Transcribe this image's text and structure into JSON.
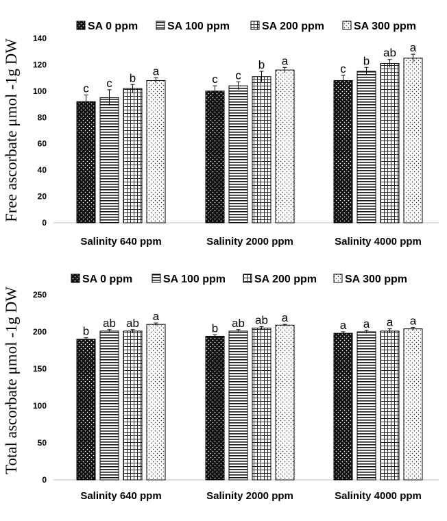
{
  "chart_data": [
    {
      "type": "bar",
      "ylabel": "Free ascorbate μmol -1g DW",
      "ylim": [
        0,
        140
      ],
      "yticks": [
        0,
        20,
        40,
        60,
        80,
        100,
        120,
        140
      ],
      "categories": [
        "Salinity 640 ppm",
        "Salinity 2000 ppm",
        "Salinity 4000 ppm"
      ],
      "legend_position": "top",
      "series": [
        {
          "name": "SA 0 ppm",
          "pattern": "dots-dark",
          "values": [
            92,
            100,
            108
          ],
          "errors": [
            5,
            4,
            4
          ],
          "letters": [
            "c",
            "c",
            "c"
          ]
        },
        {
          "name": "SA 100 ppm",
          "pattern": "horizontal",
          "values": [
            95,
            104,
            115
          ],
          "errors": [
            6,
            3,
            3
          ],
          "letters": [
            "c",
            "c",
            "b"
          ]
        },
        {
          "name": "SA 200 ppm",
          "pattern": "grid",
          "values": [
            102,
            111,
            121
          ],
          "errors": [
            3,
            4,
            3
          ],
          "letters": [
            "b",
            "b",
            "ab"
          ]
        },
        {
          "name": "SA 300 ppm",
          "pattern": "dots-light",
          "values": [
            108,
            116,
            125
          ],
          "errors": [
            2,
            2,
            3
          ],
          "letters": [
            "a",
            "a",
            "a"
          ]
        }
      ]
    },
    {
      "type": "bar",
      "ylabel": "Total ascorbate μmol -1g DW",
      "ylim": [
        0,
        250
      ],
      "yticks": [
        0,
        50,
        100,
        150,
        200,
        250
      ],
      "categories": [
        "Salinity 640 ppm",
        "Salinity 2000 ppm",
        "Salinity 4000 ppm"
      ],
      "legend_position": "top",
      "series": [
        {
          "name": "SA 0 ppm",
          "pattern": "dots-dark",
          "values": [
            190,
            194,
            198
          ],
          "errors": [
            2,
            2,
            2
          ],
          "letters": [
            "b",
            "b",
            "a"
          ]
        },
        {
          "name": "SA 100 ppm",
          "pattern": "horizontal",
          "values": [
            201,
            201,
            200
          ],
          "errors": [
            2,
            2,
            2
          ],
          "letters": [
            "ab",
            "ab",
            "a"
          ]
        },
        {
          "name": "SA 200 ppm",
          "pattern": "grid",
          "values": [
            201,
            205,
            201
          ],
          "errors": [
            2,
            2,
            3
          ],
          "letters": [
            "ab",
            "ab",
            "a"
          ]
        },
        {
          "name": "SA 300 ppm",
          "pattern": "dots-light",
          "values": [
            210,
            209,
            204
          ],
          "errors": [
            2,
            1,
            2
          ],
          "letters": [
            "a",
            "a",
            "a"
          ]
        }
      ]
    }
  ]
}
